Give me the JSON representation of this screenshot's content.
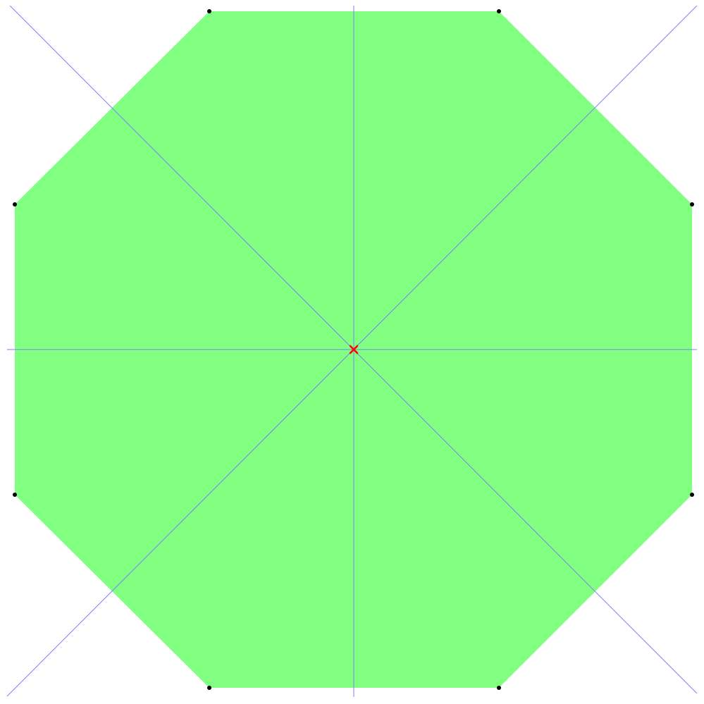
{
  "figure": {
    "shape": "regular-octagon",
    "vertex_count": 8,
    "symmetry_line_count": 4,
    "center_marker": "x-mark",
    "colors": {
      "fill": "#80ff80",
      "symmetry_lines": "#7f7fff",
      "vertices": "#000000",
      "center": "#ff0000",
      "background": "#ffffff"
    }
  }
}
